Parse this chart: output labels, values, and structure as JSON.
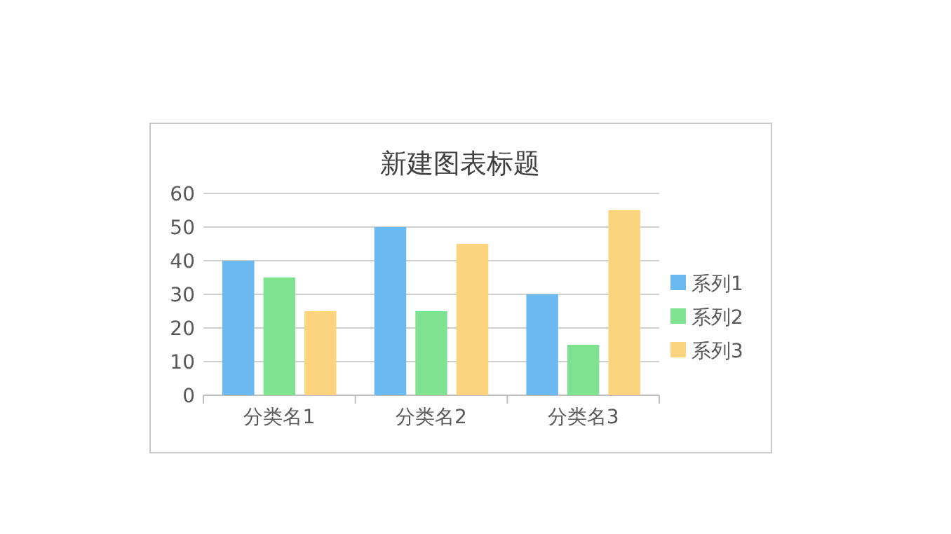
{
  "chart_data": {
    "type": "bar",
    "title": "新建图表标题",
    "categories": [
      "分类名1",
      "分类名2",
      "分类名3"
    ],
    "series": [
      {
        "name": "系列1",
        "color": "#6cb9f2",
        "values": [
          40,
          50,
          30
        ]
      },
      {
        "name": "系列2",
        "color": "#7fe291",
        "values": [
          35,
          25,
          15
        ]
      },
      {
        "name": "系列3",
        "color": "#fdd47e",
        "values": [
          25,
          45,
          55
        ]
      }
    ],
    "ylim": [
      0,
      60
    ],
    "yticks": [
      0,
      10,
      20,
      30,
      40,
      50,
      60
    ],
    "grid": "y",
    "legend": "right"
  }
}
